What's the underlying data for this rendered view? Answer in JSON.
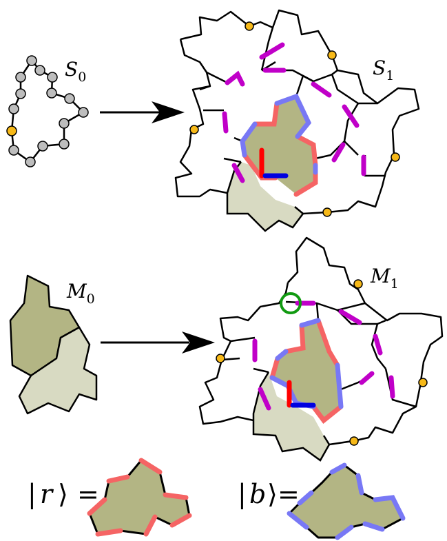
{
  "labels": {
    "s0": "S",
    "s0_sub": "0",
    "s1": "S",
    "s1_sub": "1",
    "m0": "M",
    "m0_sub": "0",
    "m1": "M",
    "m1_sub": "1"
  },
  "kets": {
    "r_symbol": "r",
    "b_symbol": "b",
    "equals": "="
  },
  "colors": {
    "outline": "#000000",
    "dark_region": "#b3b584",
    "light_region": "#d8dac2",
    "magenta": "#c000c8",
    "red_edge": "#f56464",
    "blue_edge": "#7878f5",
    "strong_red": "#ff0000",
    "strong_blue": "#0000e0",
    "node_grey": "#bdbdbd",
    "node_yellow": "#f7b918",
    "circle_green": "#119a11"
  }
}
